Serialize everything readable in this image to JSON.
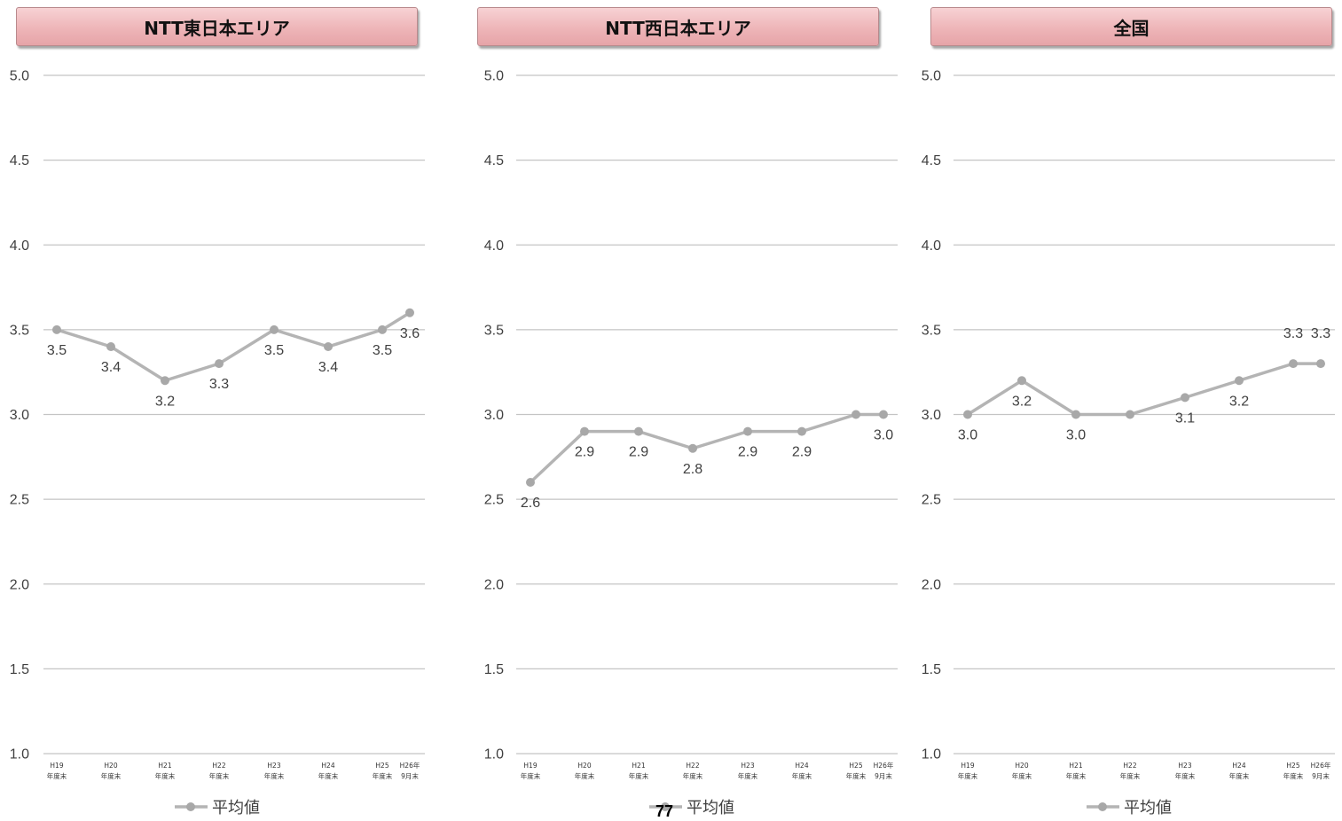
{
  "page_number": "77",
  "chart_data": [
    {
      "type": "line",
      "title": "NTT東日本エリア",
      "categories": [
        [
          "H19",
          "年度末"
        ],
        [
          "H20",
          "年度末"
        ],
        [
          "H21",
          "年度末"
        ],
        [
          "H22",
          "年度末"
        ],
        [
          "H23",
          "年度末"
        ],
        [
          "H24",
          "年度末"
        ],
        [
          "H25",
          "年度末"
        ],
        [
          "H26年",
          "9月末"
        ]
      ],
      "y_ticks": [
        "5.0",
        "4.5",
        "4.0",
        "3.5",
        "3.0",
        "2.5",
        "2.0",
        "1.5",
        "1.0"
      ],
      "ylim": [
        1.0,
        5.0
      ],
      "grid": true,
      "legend_position": "bottom",
      "series": [
        {
          "name": "平均値",
          "values": [
            3.5,
            3.4,
            3.2,
            3.3,
            3.5,
            3.4,
            3.5,
            3.6
          ],
          "color": "#b4b4b4"
        }
      ],
      "data_labels": [
        "3.5",
        "3.4",
        "3.2",
        "3.3",
        "3.5",
        "3.4",
        "3.5",
        "3.6"
      ]
    },
    {
      "type": "line",
      "title": "NTT西日本エリア",
      "categories": [
        [
          "H19",
          "年度末"
        ],
        [
          "H20",
          "年度末"
        ],
        [
          "H21",
          "年度末"
        ],
        [
          "H22",
          "年度末"
        ],
        [
          "H23",
          "年度末"
        ],
        [
          "H24",
          "年度末"
        ],
        [
          "H25",
          "年度末"
        ],
        [
          "H26年",
          "9月末"
        ]
      ],
      "y_ticks": [
        "5.0",
        "4.5",
        "4.0",
        "3.5",
        "3.0",
        "2.5",
        "2.0",
        "1.5",
        "1.0"
      ],
      "ylim": [
        1.0,
        5.0
      ],
      "grid": true,
      "legend_position": "bottom",
      "series": [
        {
          "name": "平均値",
          "values": [
            2.6,
            2.9,
            2.9,
            2.8,
            2.9,
            2.9,
            3.0,
            3.0
          ],
          "color": "#b4b4b4"
        }
      ],
      "data_labels": [
        "2.6",
        "2.9",
        "2.9",
        "2.8",
        "2.9",
        "2.9",
        "",
        "3.0"
      ]
    },
    {
      "type": "line",
      "title": "全国",
      "categories": [
        [
          "H19",
          "年度末"
        ],
        [
          "H20",
          "年度末"
        ],
        [
          "H21",
          "年度末"
        ],
        [
          "H22",
          "年度末"
        ],
        [
          "H23",
          "年度末"
        ],
        [
          "H24",
          "年度末"
        ],
        [
          "H25",
          "年度末"
        ],
        [
          "H26年",
          "9月末"
        ]
      ],
      "y_ticks": [
        "5.0",
        "4.5",
        "4.0",
        "3.5",
        "3.0",
        "2.5",
        "2.0",
        "1.5",
        "1.0"
      ],
      "ylim": [
        1.0,
        5.0
      ],
      "grid": true,
      "legend_position": "bottom",
      "series": [
        {
          "name": "平均値",
          "values": [
            3.0,
            3.2,
            3.0,
            3.0,
            3.1,
            3.2,
            3.3,
            3.3
          ],
          "color": "#b4b4b4"
        }
      ],
      "data_labels": [
        "3.0",
        "3.2",
        "3.0",
        "",
        "3.1",
        "3.2",
        "3.3",
        "3.3"
      ]
    }
  ]
}
